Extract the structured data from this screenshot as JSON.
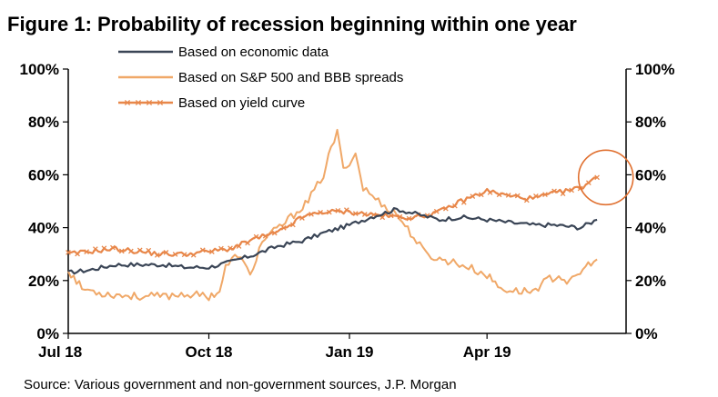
{
  "chart_data": {
    "type": "line",
    "title": "Figure 1: Probability of recession beginning within one year",
    "source": "Source: Various government and non-government sources, J.P. Morgan",
    "y_ticks": [
      "0%",
      "20%",
      "40%",
      "60%",
      "80%",
      "100%"
    ],
    "y_tick_values": [
      0,
      20,
      40,
      60,
      80,
      100
    ],
    "ylim": [
      0,
      100
    ],
    "x_ticks": [
      "Jul 18",
      "Oct 18",
      "Jan 19",
      "Apr 19"
    ],
    "x_tick_values": [
      "2018-07-01",
      "2018-10-01",
      "2019-01-01",
      "2019-04-01"
    ],
    "xlim": [
      "2018-07-01",
      "2019-07-01"
    ],
    "grid": false,
    "legend_position": "top",
    "colors": {
      "economic": "#3a4556",
      "spreads": "#f0a868",
      "yield_curve": "#e8874a",
      "highlight_circle": "#e07030"
    },
    "series": [
      {
        "name": "Based on economic data",
        "style": "line",
        "points": [
          [
            "2018-07-01",
            23
          ],
          [
            "2018-07-15",
            24
          ],
          [
            "2018-08-01",
            26
          ],
          [
            "2018-08-15",
            26
          ],
          [
            "2018-09-01",
            26
          ],
          [
            "2018-09-15",
            25
          ],
          [
            "2018-10-01",
            25
          ],
          [
            "2018-10-15",
            27
          ],
          [
            "2018-11-01",
            30
          ],
          [
            "2018-11-15",
            33
          ],
          [
            "2018-12-01",
            35
          ],
          [
            "2018-12-15",
            38
          ],
          [
            "2019-01-01",
            41
          ],
          [
            "2019-01-15",
            44
          ],
          [
            "2019-02-01",
            47
          ],
          [
            "2019-02-15",
            45
          ],
          [
            "2019-03-01",
            43
          ],
          [
            "2019-03-15",
            44
          ],
          [
            "2019-04-01",
            43
          ],
          [
            "2019-04-15",
            42
          ],
          [
            "2019-05-01",
            41
          ],
          [
            "2019-05-15",
            41
          ],
          [
            "2019-06-01",
            40
          ],
          [
            "2019-06-12",
            43
          ]
        ]
      },
      {
        "name": "Based on S&P 500 and BBB spreads",
        "style": "line",
        "points": [
          [
            "2018-07-01",
            24
          ],
          [
            "2018-07-10",
            17
          ],
          [
            "2018-07-25",
            15
          ],
          [
            "2018-08-15",
            14
          ],
          [
            "2018-09-01",
            14
          ],
          [
            "2018-09-15",
            15
          ],
          [
            "2018-10-01",
            14
          ],
          [
            "2018-10-08",
            16
          ],
          [
            "2018-10-12",
            25
          ],
          [
            "2018-10-20",
            30
          ],
          [
            "2018-10-28",
            22
          ],
          [
            "2018-11-05",
            35
          ],
          [
            "2018-11-20",
            42
          ],
          [
            "2018-12-05",
            50
          ],
          [
            "2018-12-15",
            60
          ],
          [
            "2018-12-20",
            70
          ],
          [
            "2018-12-24",
            76
          ],
          [
            "2018-12-28",
            62
          ],
          [
            "2019-01-05",
            68
          ],
          [
            "2019-01-10",
            55
          ],
          [
            "2019-01-20",
            50
          ],
          [
            "2019-02-01",
            45
          ],
          [
            "2019-02-10",
            38
          ],
          [
            "2019-02-20",
            30
          ],
          [
            "2019-03-01",
            28
          ],
          [
            "2019-03-10",
            27
          ],
          [
            "2019-03-20",
            25
          ],
          [
            "2019-04-01",
            22
          ],
          [
            "2019-04-10",
            17
          ],
          [
            "2019-04-20",
            16
          ],
          [
            "2019-05-01",
            16
          ],
          [
            "2019-05-10",
            20
          ],
          [
            "2019-05-18",
            22
          ],
          [
            "2019-05-25",
            19
          ],
          [
            "2019-06-01",
            23
          ],
          [
            "2019-06-08",
            27
          ],
          [
            "2019-06-12",
            28
          ]
        ]
      },
      {
        "name": "Based on yield curve",
        "style": "line-markers",
        "points": [
          [
            "2018-07-01",
            30
          ],
          [
            "2018-07-15",
            31
          ],
          [
            "2018-08-01",
            32
          ],
          [
            "2018-08-15",
            31
          ],
          [
            "2018-09-01",
            30
          ],
          [
            "2018-09-15",
            30
          ],
          [
            "2018-10-01",
            31
          ],
          [
            "2018-10-15",
            32
          ],
          [
            "2018-11-01",
            36
          ],
          [
            "2018-11-15",
            38
          ],
          [
            "2018-12-01",
            44
          ],
          [
            "2018-12-15",
            46
          ],
          [
            "2019-01-01",
            46
          ],
          [
            "2019-01-15",
            45
          ],
          [
            "2019-02-01",
            44
          ],
          [
            "2019-02-15",
            44
          ],
          [
            "2019-03-01",
            46
          ],
          [
            "2019-03-15",
            50
          ],
          [
            "2019-04-01",
            54
          ],
          [
            "2019-04-15",
            52
          ],
          [
            "2019-05-01",
            51
          ],
          [
            "2019-05-15",
            53
          ],
          [
            "2019-06-01",
            55
          ],
          [
            "2019-06-12",
            59
          ]
        ]
      }
    ],
    "annotations": [
      {
        "type": "circle",
        "x": "2019-06-10",
        "y": 59,
        "label": "highlighted latest reading"
      }
    ]
  }
}
